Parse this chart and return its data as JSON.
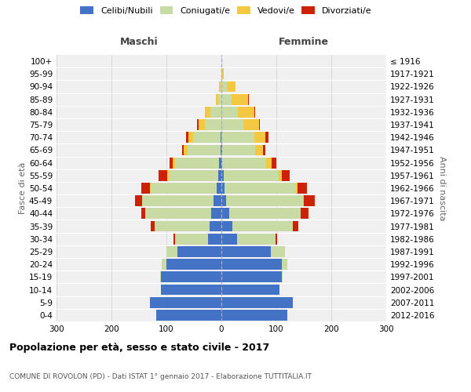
{
  "age_groups": [
    "0-4",
    "5-9",
    "10-14",
    "15-19",
    "20-24",
    "25-29",
    "30-34",
    "35-39",
    "40-44",
    "45-49",
    "50-54",
    "55-59",
    "60-64",
    "65-69",
    "70-74",
    "75-79",
    "80-84",
    "85-89",
    "90-94",
    "95-99",
    "100+"
  ],
  "birth_years": [
    "2012-2016",
    "2007-2011",
    "2002-2006",
    "1997-2001",
    "1992-1996",
    "1987-1991",
    "1982-1986",
    "1977-1981",
    "1972-1976",
    "1967-1971",
    "1962-1966",
    "1957-1961",
    "1952-1956",
    "1947-1951",
    "1942-1946",
    "1937-1941",
    "1932-1936",
    "1927-1931",
    "1922-1926",
    "1917-1921",
    "≤ 1916"
  ],
  "males": {
    "celibi": [
      118,
      130,
      110,
      110,
      100,
      80,
      25,
      22,
      18,
      15,
      8,
      6,
      4,
      2,
      2,
      0,
      0,
      0,
      0,
      0,
      0
    ],
    "coniugati": [
      0,
      0,
      0,
      2,
      8,
      20,
      60,
      100,
      120,
      130,
      120,
      90,
      80,
      60,
      50,
      30,
      20,
      6,
      2,
      0,
      0
    ],
    "vedovi": [
      0,
      0,
      0,
      0,
      0,
      0,
      0,
      0,
      0,
      0,
      2,
      2,
      4,
      6,
      8,
      12,
      10,
      4,
      2,
      0,
      0
    ],
    "divorziati": [
      0,
      0,
      0,
      0,
      0,
      0,
      2,
      6,
      8,
      12,
      16,
      16,
      6,
      4,
      4,
      2,
      0,
      0,
      0,
      0,
      0
    ]
  },
  "females": {
    "nubili": [
      120,
      130,
      105,
      110,
      110,
      90,
      28,
      20,
      14,
      8,
      6,
      4,
      2,
      2,
      0,
      0,
      0,
      0,
      0,
      0,
      0
    ],
    "coniugate": [
      0,
      0,
      0,
      2,
      10,
      25,
      70,
      110,
      130,
      140,
      130,
      100,
      80,
      60,
      60,
      40,
      30,
      18,
      10,
      2,
      0
    ],
    "vedove": [
      0,
      0,
      0,
      0,
      0,
      0,
      0,
      0,
      0,
      2,
      2,
      6,
      10,
      14,
      20,
      28,
      30,
      30,
      15,
      2,
      0
    ],
    "divorziate": [
      0,
      0,
      0,
      0,
      0,
      0,
      4,
      10,
      14,
      20,
      18,
      14,
      8,
      4,
      6,
      2,
      2,
      2,
      0,
      0,
      0
    ]
  },
  "colors": {
    "celibi": "#4472C4",
    "coniugati": "#c8dba4",
    "vedovi": "#F5C842",
    "divorziati": "#CC2200"
  },
  "xlim": 300,
  "title": "Popolazione per età, sesso e stato civile - 2017",
  "subtitle": "COMUNE DI ROVOLON (PD) - Dati ISTAT 1° gennaio 2017 - Elaborazione TUTTITALIA.IT",
  "ylabel_left": "Fasce di età",
  "ylabel_right": "Anni di nascita",
  "xlabel_maschi": "Maschi",
  "xlabel_femmine": "Femmine",
  "bg_color": "#f0f0f0",
  "grid_color": "#d8d8d8",
  "bar_height": 0.85
}
